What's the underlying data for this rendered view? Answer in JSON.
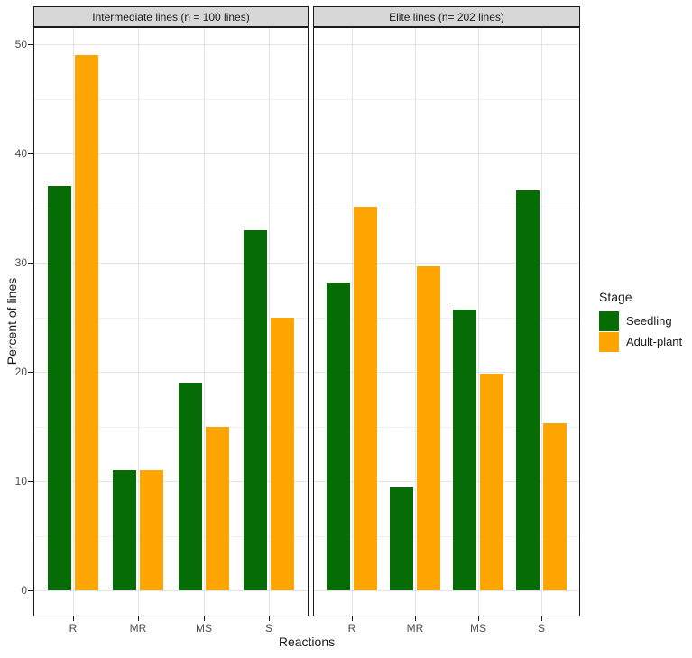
{
  "chart_data": {
    "type": "bar",
    "title": "",
    "xlabel": "Reactions",
    "ylabel": "Percent of lines",
    "ylim": [
      0,
      50
    ],
    "y_major_ticks": [
      0,
      10,
      20,
      30,
      40,
      50
    ],
    "y_minor_ticks": [
      5,
      15,
      25,
      35,
      45
    ],
    "categories": [
      "R",
      "MR",
      "MS",
      "S"
    ],
    "grid": "major-and-minor",
    "legend_position": "right",
    "legend": {
      "title": "Stage",
      "entries": [
        {
          "label": "Seedling",
          "color": "#066C06"
        },
        {
          "label": "Adult-plant",
          "color": "#FFA502"
        }
      ]
    },
    "facets": [
      {
        "title": "Intermediate lines (n = 100 lines)",
        "series": [
          {
            "name": "Seedling",
            "values": [
              37,
              11,
              19,
              33
            ]
          },
          {
            "name": "Adult-plant",
            "values": [
              49,
              11,
              15,
              25
            ]
          }
        ]
      },
      {
        "title": "Elite lines (n= 202 lines)",
        "series": [
          {
            "name": "Seedling",
            "values": [
              28.2,
              9.4,
              25.7,
              36.6
            ]
          },
          {
            "name": "Adult-plant",
            "values": [
              35.1,
              29.7,
              19.8,
              15.3
            ]
          }
        ]
      }
    ]
  },
  "colors": {
    "background": "#ffffff",
    "strip_bg": "#d7d7d7",
    "border": "#1a1a1a",
    "grid_major": "#e4e4e4",
    "grid_minor": "#f0f0f0",
    "tick_label": "#4d4d4d",
    "text": "#1a1a1a"
  }
}
